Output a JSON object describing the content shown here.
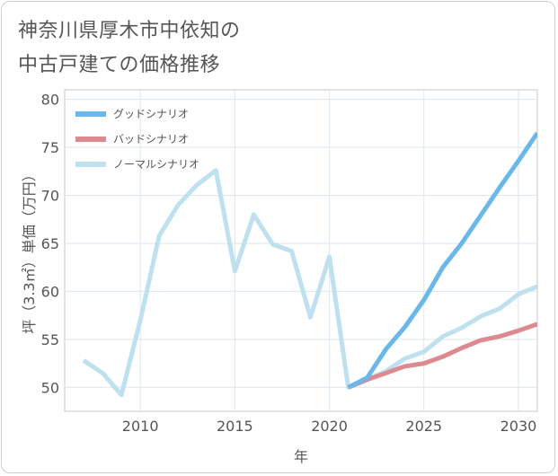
{
  "header": {
    "title": "神奈川県厚木市中依知の\n中古戸建ての価格推移"
  },
  "chart_data": {
    "type": "line",
    "title": "神奈川県厚木市中依知の中古戸建ての価格推移",
    "xlabel": "年",
    "ylabel": "坪（3.3㎡）単価（万円）",
    "xlim": [
      2006,
      2031
    ],
    "ylim": [
      47.5,
      81
    ],
    "xticks": [
      2010,
      2015,
      2020,
      2025,
      2030
    ],
    "yticks": [
      50,
      55,
      60,
      65,
      70,
      75,
      80
    ],
    "grid": true,
    "legend_position": "top-left",
    "series": [
      {
        "name": "グッドシナリオ",
        "color": "#6ab8ea",
        "x": [
          2021,
          2022,
          2023,
          2024,
          2025,
          2026,
          2027,
          2028,
          2029,
          2030,
          2031
        ],
        "y": [
          50.0,
          51.0,
          54.0,
          56.3,
          59.1,
          62.5,
          65.0,
          67.9,
          70.8,
          73.6,
          76.5
        ]
      },
      {
        "name": "バッドシナリオ",
        "color": "#dc8a90",
        "x": [
          2021,
          2022,
          2023,
          2024,
          2025,
          2026,
          2027,
          2028,
          2029,
          2030,
          2031
        ],
        "y": [
          50.0,
          50.8,
          51.5,
          52.2,
          52.5,
          53.2,
          54.1,
          54.9,
          55.3,
          55.9,
          56.6
        ]
      },
      {
        "name": "ノーマルシナリオ",
        "color": "#bfe0ee",
        "x": [
          2007,
          2008,
          2009,
          2010,
          2011,
          2012,
          2013,
          2014,
          2015,
          2016,
          2017,
          2018,
          2019,
          2020,
          2021,
          2022,
          2023,
          2024,
          2025,
          2026,
          2027,
          2028,
          2029,
          2030,
          2031
        ],
        "y": [
          52.8,
          51.5,
          49.2,
          57.0,
          65.8,
          69.0,
          71.1,
          72.6,
          62.1,
          68.0,
          64.9,
          64.2,
          57.3,
          63.6,
          50.0,
          50.8,
          51.7,
          53.0,
          53.7,
          55.3,
          56.2,
          57.4,
          58.2,
          59.7,
          60.5
        ]
      }
    ]
  }
}
